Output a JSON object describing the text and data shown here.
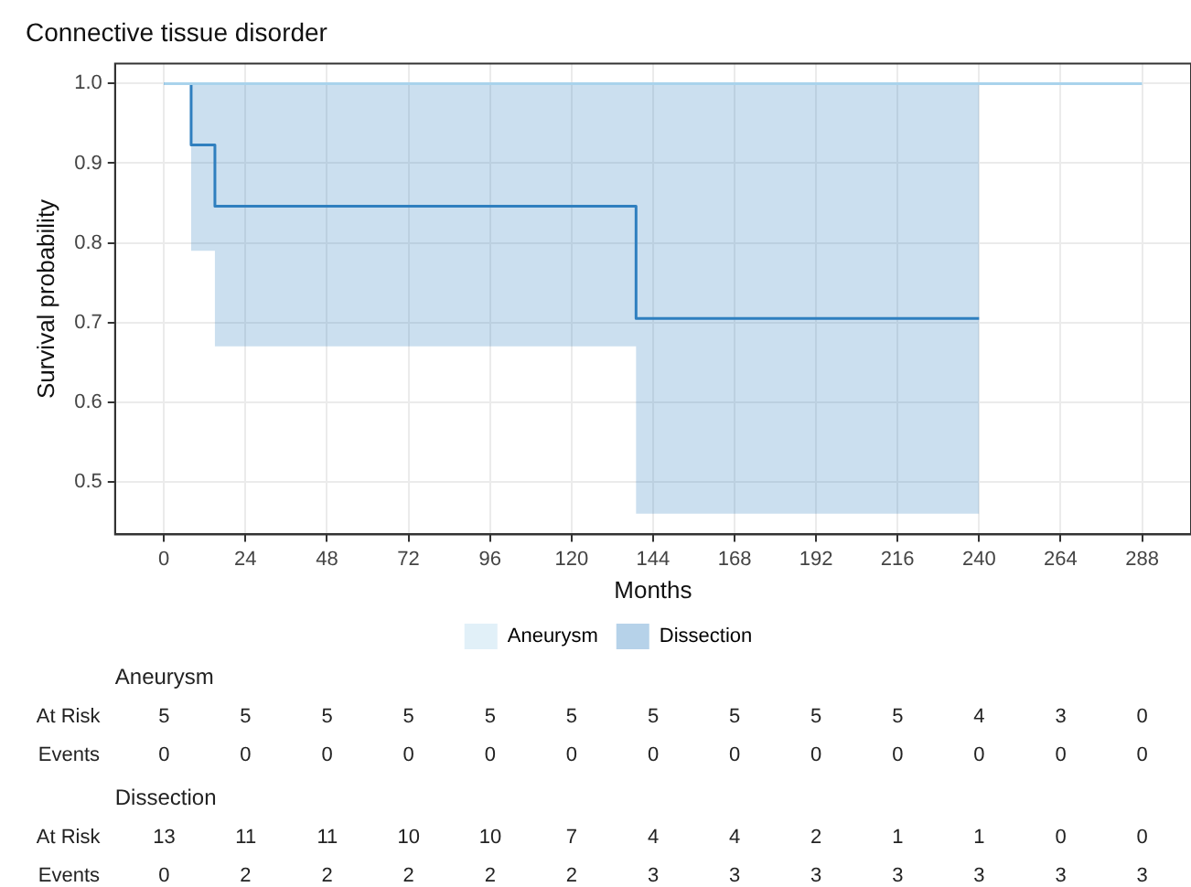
{
  "chart_data": [
    {
      "type": "step",
      "title": "Connective tissue disorder",
      "xlabel": "Months",
      "ylabel": "Survival probability",
      "xlim": [
        -14.4,
        302.4
      ],
      "ylim": [
        0.434,
        1.025
      ],
      "xticks": [
        0,
        24,
        48,
        72,
        96,
        120,
        144,
        168,
        192,
        216,
        240,
        264,
        288
      ],
      "yticks": [
        {
          "value": 0.5,
          "label": "0.5"
        },
        {
          "value": 0.6,
          "label": "0.6"
        },
        {
          "value": 0.7,
          "label": "0.7"
        },
        {
          "value": 0.8,
          "label": "0.8"
        },
        {
          "value": 0.9,
          "label": "0.9"
        },
        {
          "value": 1,
          "label": "1.0"
        }
      ],
      "grid": true,
      "legend": "bottom",
      "series": [
        {
          "name": "Aneurysm",
          "color": "#a9d3ec",
          "x": [
            0,
            288
          ],
          "values": [
            1,
            1
          ]
        },
        {
          "name": "Dissection",
          "color": "#2f7fbf",
          "x": [
            0,
            8,
            15,
            139,
            240
          ],
          "values": [
            1,
            0.923,
            0.846,
            0.705,
            0.705
          ],
          "lower": [
            1,
            0.79,
            0.67,
            0.46,
            0.46
          ],
          "upper": [
            1,
            1,
            1,
            1,
            1
          ]
        }
      ]
    },
    {
      "type": "heatmap",
      "title": "Aneurysm",
      "data_labels": true,
      "tick_labels": "y",
      "categories": [
        "0",
        "24",
        "48",
        "72",
        "96",
        "120",
        "144",
        "168",
        "192",
        "216",
        "240",
        "264",
        "288"
      ],
      "y_categories": [
        "At Risk",
        "Events"
      ],
      "cells": [
        [
          5,
          5,
          5,
          5,
          5,
          5,
          5,
          5,
          5,
          5,
          4,
          3,
          0
        ],
        [
          0,
          0,
          0,
          0,
          0,
          0,
          0,
          0,
          0,
          0,
          0,
          0,
          0
        ]
      ]
    },
    {
      "type": "heatmap",
      "title": "Dissection",
      "data_labels": true,
      "tick_labels": "y",
      "categories": [
        "0",
        "24",
        "48",
        "72",
        "96",
        "120",
        "144",
        "168",
        "192",
        "216",
        "240",
        "264",
        "288"
      ],
      "y_categories": [
        "At Risk",
        "Events"
      ],
      "cells": [
        [
          13,
          11,
          11,
          10,
          10,
          7,
          4,
          4,
          2,
          1,
          1,
          0,
          0
        ],
        [
          0,
          2,
          2,
          2,
          2,
          2,
          3,
          3,
          3,
          3,
          3,
          3,
          3
        ]
      ]
    }
  ]
}
